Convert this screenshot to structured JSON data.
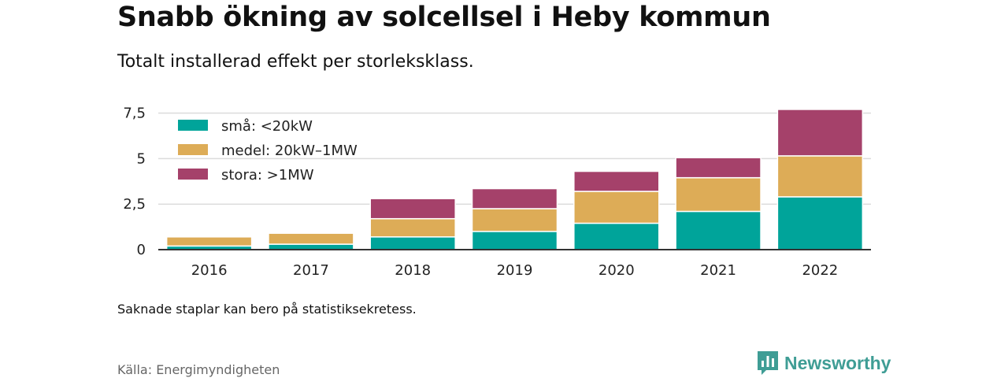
{
  "header": {
    "title": "Snabb ökning av solcellsel i Heby kommun",
    "subtitle": "Totalt installerad effekt per storleksklass."
  },
  "chart_data": {
    "type": "bar",
    "stacked": true,
    "categories": [
      "2016",
      "2017",
      "2018",
      "2019",
      "2020",
      "2021",
      "2022"
    ],
    "series": [
      {
        "name": "små: <20kW",
        "color": "#00a49a",
        "values": [
          0.2,
          0.3,
          0.7,
          1.0,
          1.45,
          2.1,
          2.9
        ]
      },
      {
        "name": "medel: 20kW–1MW",
        "color": "#ddac57",
        "values": [
          0.5,
          0.6,
          1.0,
          1.25,
          1.75,
          1.85,
          2.25
        ]
      },
      {
        "name": "stora: >1MW",
        "color": "#a5416a",
        "values": [
          0.0,
          0.0,
          1.1,
          1.1,
          1.1,
          1.1,
          2.55
        ]
      }
    ],
    "y_ticks": [
      0,
      2.5,
      5,
      7.5
    ],
    "y_tick_labels": [
      "0",
      "2,5",
      "5",
      "7,5"
    ],
    "ylim": [
      0,
      8.0
    ],
    "grid": true,
    "legend_position": "top-left"
  },
  "footer": {
    "note": "Saknade staplar kan bero på statistiksekretess.",
    "source": "Källa: Energimyndigheten",
    "brand": "Newsworthy",
    "brand_icon": "bar-chart-speech-bubble-icon",
    "brand_color": "#3f9d95"
  }
}
